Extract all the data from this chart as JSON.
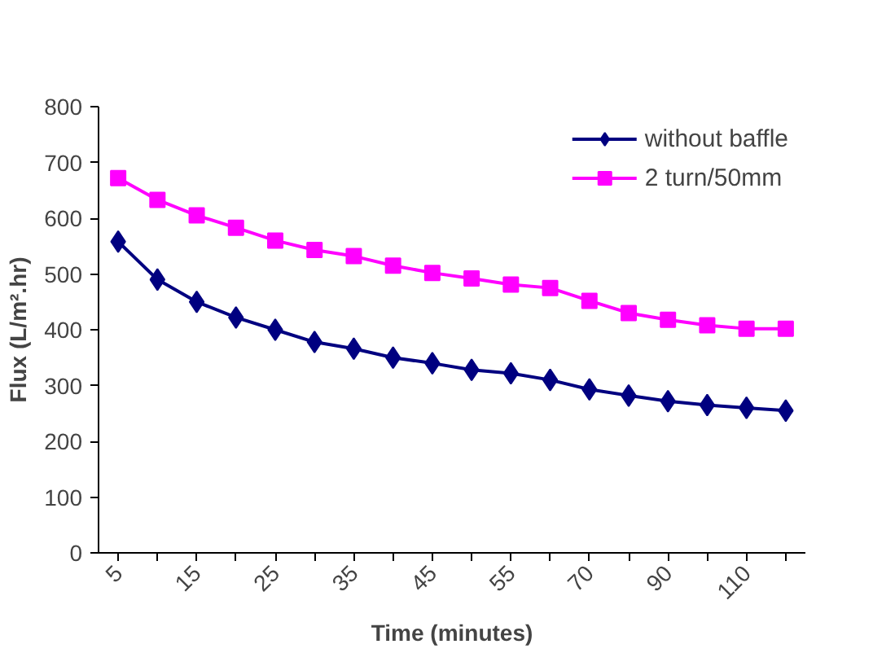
{
  "chart_data": {
    "type": "line",
    "xlabel": "Time (minutes)",
    "ylabel": "Flux (L/m².hr)",
    "categories": [
      "5",
      null,
      "15",
      null,
      "25",
      null,
      "35",
      null,
      "45",
      null,
      "55",
      null,
      "70",
      null,
      "90",
      null,
      "110",
      null
    ],
    "series": [
      {
        "name": "without baffle",
        "color": "#000080",
        "marker": "diamond",
        "values": [
          558,
          490,
          450,
          422,
          400,
          378,
          366,
          350,
          340,
          328,
          322,
          310,
          293,
          282,
          272,
          265,
          260,
          255
        ]
      },
      {
        "name": "2 turn/50mm",
        "color": "#ff00ff",
        "marker": "square",
        "values": [
          672,
          633,
          605,
          583,
          560,
          543,
          532,
          515,
          502,
          492,
          481,
          475,
          452,
          430,
          418,
          408,
          402,
          402
        ]
      }
    ],
    "ylim": [
      0,
      800
    ],
    "yticks": [
      0,
      100,
      200,
      300,
      400,
      500,
      600,
      700,
      800
    ],
    "grid": false,
    "legend": "top right",
    "line_style": "solid"
  }
}
